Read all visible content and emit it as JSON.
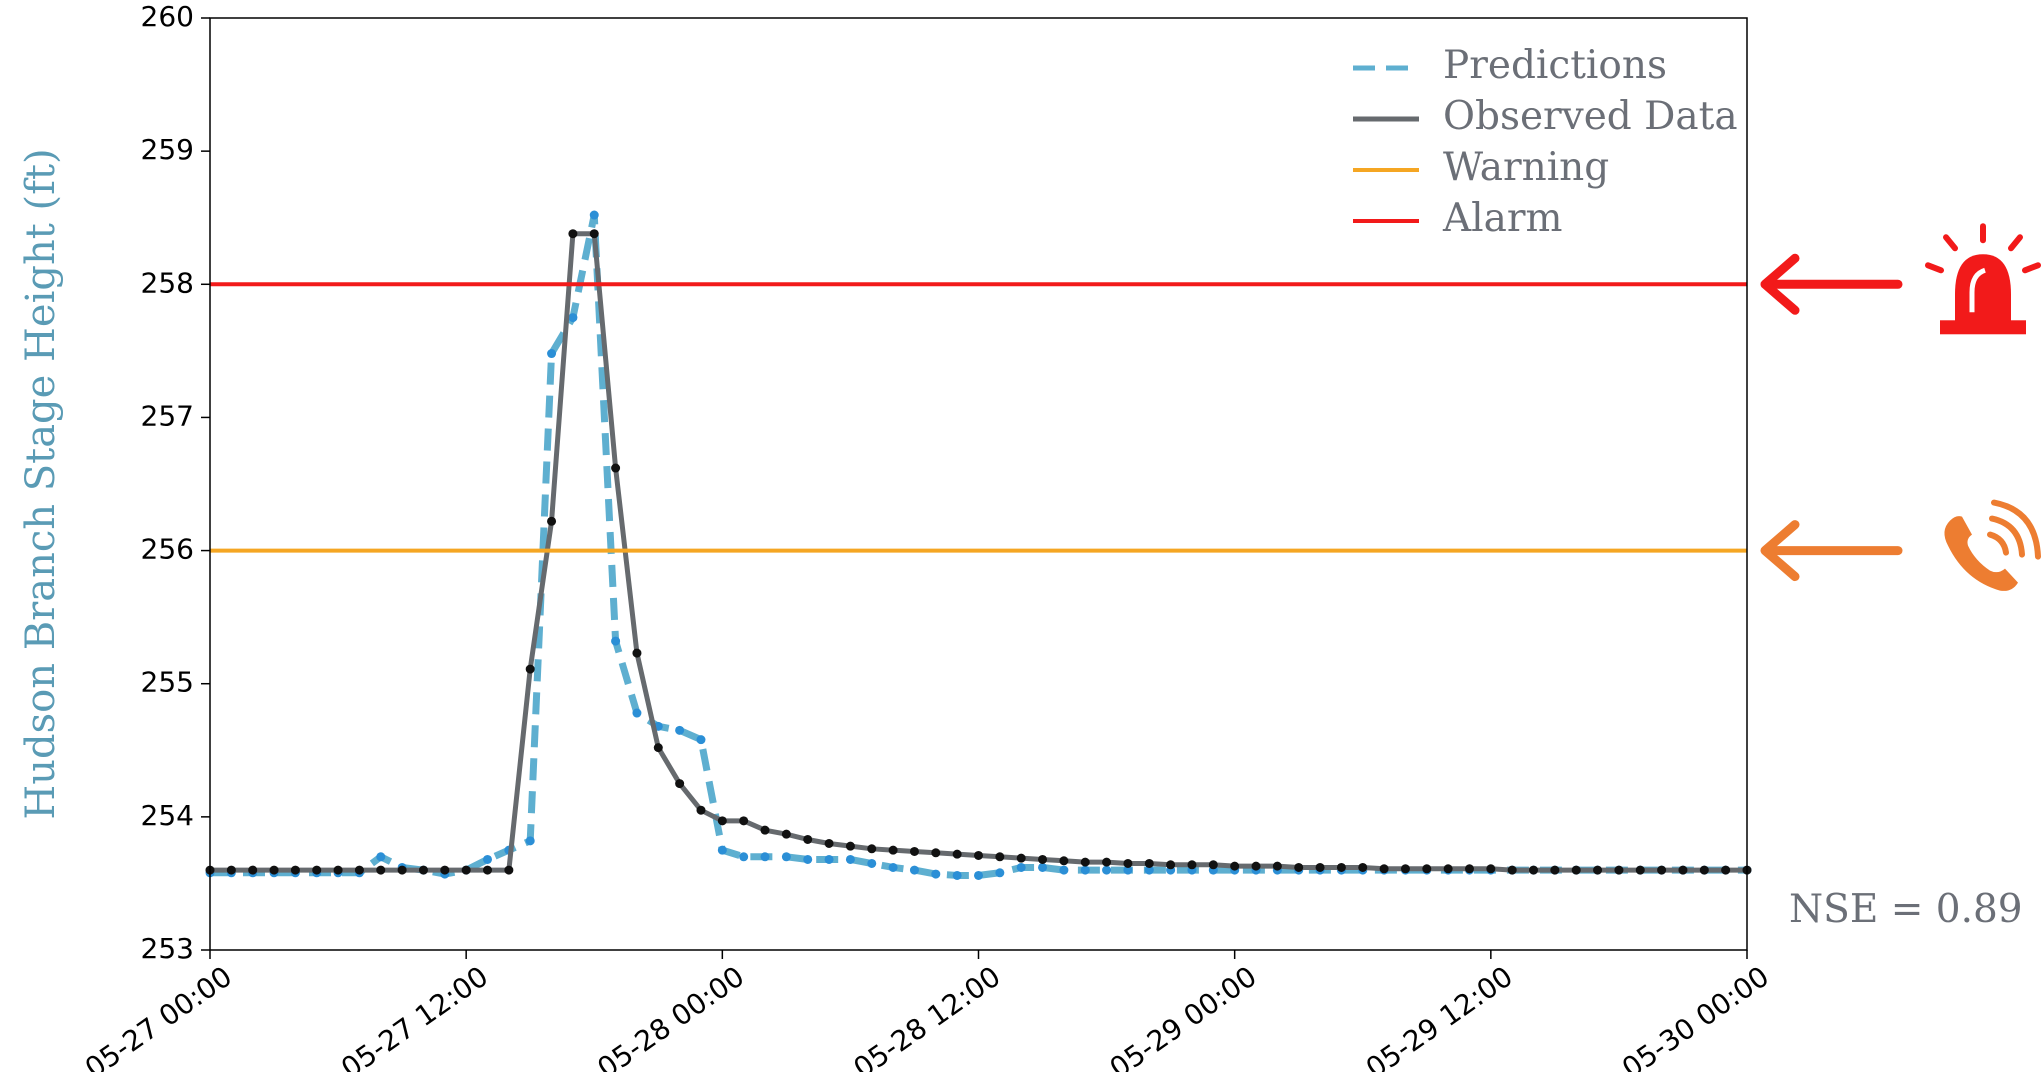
{
  "chart_data": {
    "type": "line",
    "ylabel": "Hudson Branch Stage Height (ft)",
    "annotation": "NSE = 0.89",
    "x": [
      "05-27 00:00",
      "05-27 01:00",
      "05-27 02:00",
      "05-27 03:00",
      "05-27 04:00",
      "05-27 05:00",
      "05-27 06:00",
      "05-27 07:00",
      "05-27 08:00",
      "05-27 09:00",
      "05-27 10:00",
      "05-27 11:00",
      "05-27 12:00",
      "05-27 13:00",
      "05-27 14:00",
      "05-27 15:00",
      "05-27 16:00",
      "05-27 17:00",
      "05-27 18:00",
      "05-27 19:00",
      "05-27 20:00",
      "05-27 21:00",
      "05-27 22:00",
      "05-27 23:00",
      "05-28 00:00",
      "05-28 01:00",
      "05-28 02:00",
      "05-28 03:00",
      "05-28 04:00",
      "05-28 05:00",
      "05-28 06:00",
      "05-28 07:00",
      "05-28 08:00",
      "05-28 09:00",
      "05-28 10:00",
      "05-28 11:00",
      "05-28 12:00",
      "05-28 13:00",
      "05-28 14:00",
      "05-28 15:00",
      "05-28 16:00",
      "05-28 17:00",
      "05-28 18:00",
      "05-28 19:00",
      "05-28 20:00",
      "05-28 21:00",
      "05-28 22:00",
      "05-28 23:00",
      "05-29 00:00",
      "05-29 01:00",
      "05-29 02:00",
      "05-29 03:00",
      "05-29 04:00",
      "05-29 05:00",
      "05-29 06:00",
      "05-29 07:00",
      "05-29 08:00",
      "05-29 09:00",
      "05-29 10:00",
      "05-29 11:00",
      "05-29 12:00",
      "05-29 13:00",
      "05-29 14:00",
      "05-29 15:00",
      "05-29 16:00",
      "05-29 17:00",
      "05-29 18:00",
      "05-29 19:00",
      "05-29 20:00",
      "05-29 21:00",
      "05-29 22:00",
      "05-29 23:00",
      "05-30 00:00"
    ],
    "series": [
      {
        "name": "Predictions",
        "color": "#5eafd0",
        "marker_color": "#2b8fd6",
        "style": "dashed",
        "values": [
          253.58,
          253.58,
          253.58,
          253.58,
          253.58,
          253.58,
          253.58,
          253.58,
          253.7,
          253.62,
          253.6,
          253.57,
          253.6,
          253.68,
          253.75,
          253.82,
          257.48,
          257.75,
          258.52,
          255.32,
          254.78,
          254.68,
          254.65,
          254.58,
          253.75,
          253.7,
          253.7,
          253.7,
          253.68,
          253.68,
          253.68,
          253.65,
          253.62,
          253.6,
          253.57,
          253.56,
          253.56,
          253.58,
          253.62,
          253.62,
          253.6,
          253.6,
          253.6,
          253.6,
          253.6,
          253.6,
          253.6,
          253.6,
          253.6,
          253.6,
          253.6,
          253.6,
          253.6,
          253.6,
          253.6,
          253.6,
          253.6,
          253.6,
          253.6,
          253.6,
          253.6,
          253.6,
          253.6,
          253.6,
          253.6,
          253.6,
          253.6,
          253.6,
          253.6,
          253.6,
          253.6,
          253.6,
          253.6
        ]
      },
      {
        "name": "Observed Data",
        "color": "#666a6e",
        "marker_color": "#111111",
        "style": "solid",
        "values": [
          253.6,
          253.6,
          253.6,
          253.6,
          253.6,
          253.6,
          253.6,
          253.6,
          253.6,
          253.6,
          253.6,
          253.6,
          253.6,
          253.6,
          253.6,
          255.11,
          256.22,
          258.38,
          258.38,
          256.62,
          255.23,
          254.52,
          254.25,
          254.05,
          253.97,
          253.97,
          253.9,
          253.87,
          253.83,
          253.8,
          253.78,
          253.76,
          253.75,
          253.74,
          253.73,
          253.72,
          253.71,
          253.7,
          253.69,
          253.68,
          253.67,
          253.66,
          253.66,
          253.65,
          253.65,
          253.64,
          253.64,
          253.64,
          253.63,
          253.63,
          253.63,
          253.62,
          253.62,
          253.62,
          253.62,
          253.61,
          253.61,
          253.61,
          253.61,
          253.61,
          253.61,
          253.6,
          253.6,
          253.6,
          253.6,
          253.6,
          253.6,
          253.6,
          253.6,
          253.6,
          253.6,
          253.6,
          253.6
        ]
      },
      {
        "name": "Warning",
        "color": "#f5a623",
        "style": "hline",
        "value": 256
      },
      {
        "name": "Alarm",
        "color": "#f21a1a",
        "style": "hline",
        "value": 258
      }
    ],
    "xlim": [
      "05-27 00:00",
      "05-30 00:00"
    ],
    "xticks": [
      "05-27 00:00",
      "05-27 12:00",
      "05-28 00:00",
      "05-28 12:00",
      "05-29 00:00",
      "05-29 12:00",
      "05-30 00:00"
    ],
    "ylim": [
      253,
      260
    ],
    "yticks": [
      253,
      254,
      255,
      256,
      257,
      258,
      259,
      260
    ],
    "grid": false,
    "legend": "upper right"
  }
}
